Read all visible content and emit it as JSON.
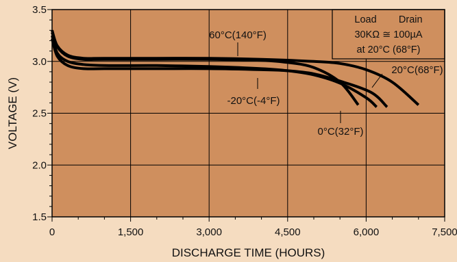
{
  "chart_data": {
    "type": "line",
    "xlabel": "DISCHARGE TIME (HOURS)",
    "ylabel": "VOLTAGE (V)",
    "xlim": [
      0,
      7500
    ],
    "ylim": [
      1.5,
      3.5
    ],
    "x_ticks": [
      0,
      1500,
      3000,
      4500,
      6000,
      7500
    ],
    "x_tick_labels": [
      "0",
      "1,500",
      "3,000",
      "4,500",
      "6,000",
      "7,500"
    ],
    "y_ticks": [
      1.5,
      2.0,
      2.5,
      3.0,
      3.5
    ],
    "y_tick_labels": [
      "1.5",
      "2.0",
      "2.5",
      "3.0",
      "3.5"
    ],
    "grid": true,
    "colors": {
      "page_background": "#f5dcc0",
      "plot_background": "#cf8f5e",
      "curve": "#000000",
      "grid": "#000000"
    },
    "legend": {
      "placement": "top-right",
      "lines": [
        "Load        Drain",
        "30KΩ ≅ 100µA",
        "at 20°C (68°F)"
      ]
    },
    "series": [
      {
        "name": "60°C(140°F)",
        "x": [
          0,
          100,
          300,
          600,
          1000,
          2000,
          3000,
          4000,
          4500,
          5000,
          5500,
          5850
        ],
        "y": [
          3.28,
          3.14,
          3.05,
          3.02,
          3.02,
          3.02,
          3.02,
          3.01,
          2.99,
          2.94,
          2.8,
          2.58
        ]
      },
      {
        "name": "20°C(68°F)",
        "x": [
          0,
          100,
          300,
          600,
          1000,
          2000,
          3000,
          4000,
          5000,
          5500,
          6000,
          6500,
          7000
        ],
        "y": [
          3.3,
          3.15,
          3.06,
          3.03,
          3.03,
          3.03,
          3.03,
          3.02,
          3.0,
          2.98,
          2.92,
          2.8,
          2.58
        ]
      },
      {
        "name": "0°C(32°F)",
        "x": [
          0,
          100,
          300,
          600,
          1000,
          2000,
          3000,
          4000,
          4500,
          5000,
          5500,
          6000,
          6200
        ],
        "y": [
          3.25,
          3.08,
          3.0,
          2.97,
          2.96,
          2.96,
          2.95,
          2.93,
          2.91,
          2.87,
          2.79,
          2.65,
          2.56
        ]
      },
      {
        "name": "-20°C(-4°F)",
        "x": [
          0,
          100,
          300,
          600,
          1000,
          2000,
          3000,
          4000,
          4500,
          5000,
          5500,
          6100,
          6400
        ],
        "y": [
          3.22,
          3.05,
          2.96,
          2.93,
          2.93,
          2.93,
          2.93,
          2.92,
          2.91,
          2.88,
          2.81,
          2.7,
          2.56
        ]
      }
    ],
    "annotations": [
      "60°C(140°F)",
      "20°C(68°F)",
      "-20°C(-4°F)",
      "0°C(32°F)"
    ]
  }
}
